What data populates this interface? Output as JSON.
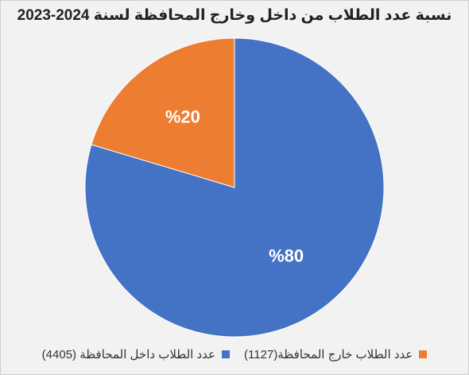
{
  "chart_data": {
    "type": "pie",
    "title": "نسبة عدد الطلاب من داخل وخارج المحافظة لسنة 2024-2023",
    "slices": [
      {
        "label": "عدد الطلاب خارج المحافظة(1127)",
        "value": 1127,
        "percent_label": "%20",
        "color": "#ed7d31"
      },
      {
        "label": "عدد الطلاب داخل المحافظة (4405)",
        "value": 4405,
        "percent_label": "%80",
        "color": "#4472c4"
      }
    ],
    "legend": "bottom",
    "start_angle": "top"
  }
}
